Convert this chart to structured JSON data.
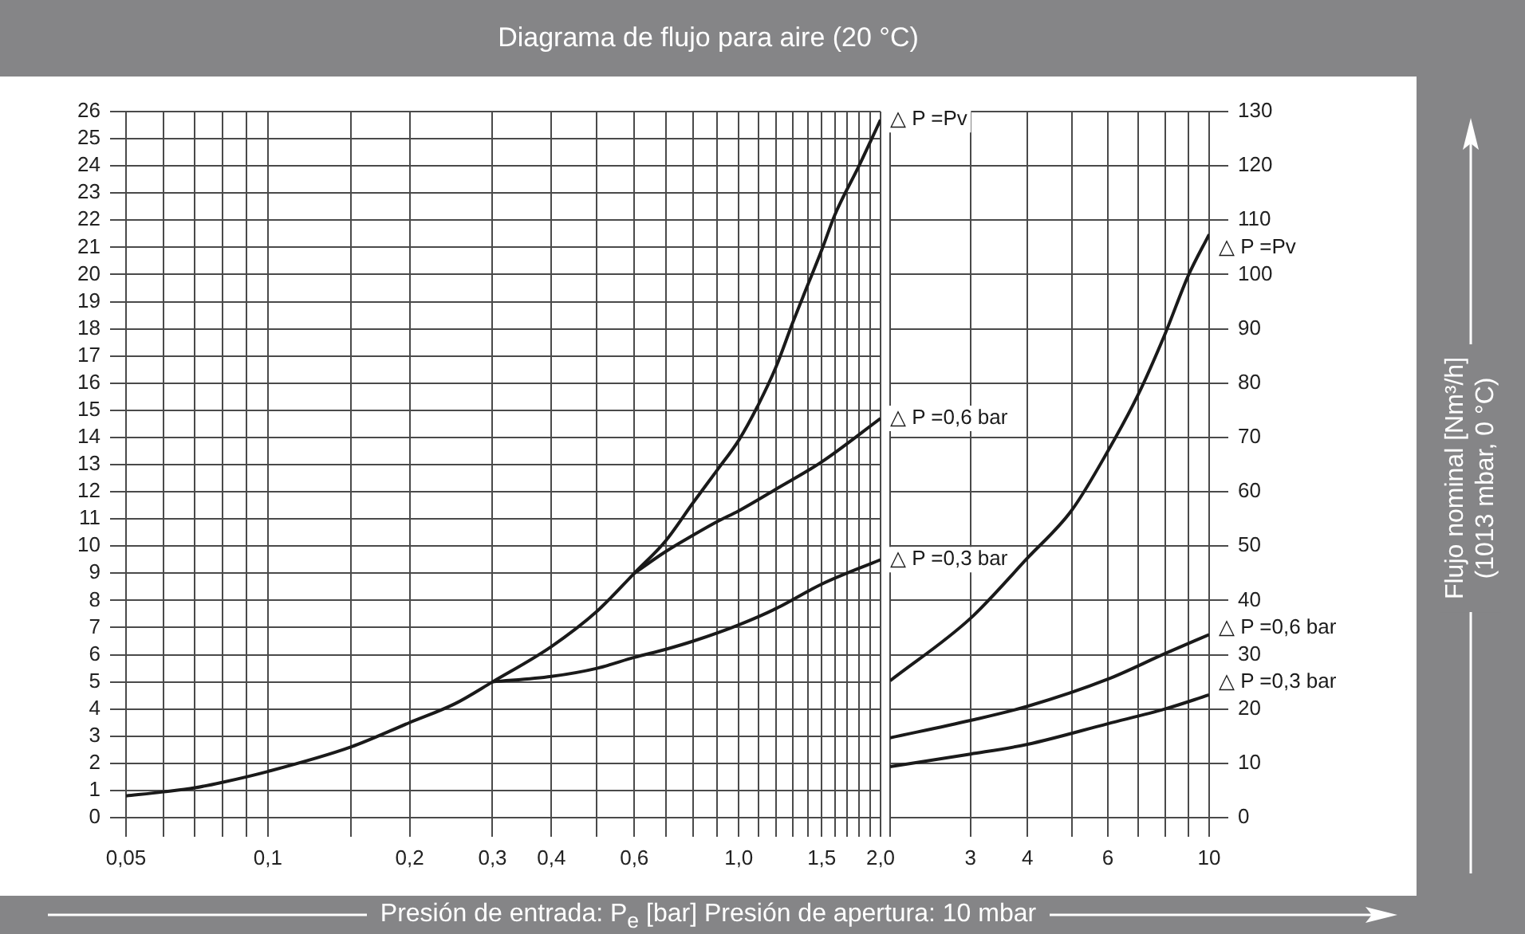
{
  "chart_data": [
    {
      "type": "line",
      "title": "Diagrama de flujo para aire (20 °C)",
      "xlabel": "Presión de entrada: P$_{e}$ [bar] Presión de apertura: 10 mbar",
      "log": "x",
      "xlim": [
        0.05,
        2
      ],
      "ylim": [
        0,
        26
      ],
      "xticks": [
        {
          "value": 0.05,
          "label": "0,05"
        },
        {
          "value": 0.06,
          "label": null
        },
        {
          "value": 0.07,
          "label": null
        },
        {
          "value": 0.08,
          "label": null
        },
        {
          "value": 0.09,
          "label": null
        },
        {
          "value": 0.1,
          "label": "0,1"
        },
        {
          "value": 0.15,
          "label": null
        },
        {
          "value": 0.2,
          "label": "0,2"
        },
        {
          "value": 0.3,
          "label": "0,3"
        },
        {
          "value": 0.4,
          "label": "0,4"
        },
        {
          "value": 0.5,
          "label": null
        },
        {
          "value": 0.6,
          "label": "0,6"
        },
        {
          "value": 0.7,
          "label": null
        },
        {
          "value": 0.8,
          "label": null
        },
        {
          "value": 0.9,
          "label": null
        },
        {
          "value": 1,
          "label": "1,0"
        },
        {
          "value": 1.1,
          "label": null
        },
        {
          "value": 1.2,
          "label": null
        },
        {
          "value": 1.3,
          "label": null
        },
        {
          "value": 1.4,
          "label": null
        },
        {
          "value": 1.5,
          "label": "1,5"
        },
        {
          "value": 1.6,
          "label": null
        },
        {
          "value": 1.7,
          "label": null
        },
        {
          "value": 1.8,
          "label": null
        },
        {
          "value": 1.9,
          "label": null
        },
        {
          "value": 2,
          "label": "2,0"
        }
      ],
      "yticks": [
        0,
        1,
        2,
        3,
        4,
        5,
        6,
        7,
        8,
        9,
        10,
        11,
        12,
        13,
        14,
        15,
        16,
        17,
        18,
        19,
        20,
        21,
        22,
        23,
        24,
        25,
        26
      ],
      "grid": true,
      "series": [
        {
          "name": "△ P =Pv",
          "color": "#1a1a1a",
          "x": [
            0.05,
            0.06,
            0.07,
            0.08,
            0.1,
            0.15,
            0.2,
            0.25,
            0.3,
            0.4,
            0.5,
            0.6,
            0.7,
            0.8,
            0.9,
            1.0,
            1.1,
            1.2,
            1.3,
            1.4,
            1.5,
            1.6,
            1.8,
            2.0
          ],
          "values": [
            0.8,
            0.95,
            1.1,
            1.3,
            1.7,
            2.6,
            3.5,
            4.2,
            5.0,
            6.3,
            7.6,
            9.0,
            10.2,
            11.6,
            12.8,
            13.9,
            15.2,
            16.6,
            18.2,
            19.6,
            20.9,
            22.2,
            24.0,
            25.7
          ]
        },
        {
          "name": "△ P =0,6 bar",
          "color": "#1a1a1a",
          "x": [
            0.6,
            0.7,
            0.8,
            0.9,
            1.0,
            1.2,
            1.5,
            2.0
          ],
          "values": [
            9.0,
            9.8,
            10.4,
            10.9,
            11.3,
            12.1,
            13.1,
            14.7
          ]
        },
        {
          "name": "△ P =0,3 bar",
          "color": "#1a1a1a",
          "x": [
            0.3,
            0.4,
            0.5,
            0.6,
            0.7,
            0.8,
            1.0,
            1.2,
            1.5,
            2.0
          ],
          "values": [
            5.0,
            5.2,
            5.5,
            5.9,
            6.2,
            6.5,
            7.1,
            7.7,
            8.6,
            9.5
          ]
        }
      ]
    },
    {
      "type": "line",
      "y2label": "Flujo nominal [Nm³/h]\n(1013 mbar, 0 °C)",
      "log": "x",
      "xlim": [
        2,
        10
      ],
      "y2lim": [
        0,
        130
      ],
      "xticks": [
        {
          "value": 2,
          "label": null
        },
        {
          "value": 3,
          "label": "3"
        },
        {
          "value": 4,
          "label": "4"
        },
        {
          "value": 5,
          "label": null
        },
        {
          "value": 6,
          "label": "6"
        },
        {
          "value": 7,
          "label": null
        },
        {
          "value": 8,
          "label": null
        },
        {
          "value": 9,
          "label": null
        },
        {
          "value": 10,
          "label": "10"
        }
      ],
      "y2ticks": [
        0,
        10,
        20,
        30,
        40,
        50,
        60,
        70,
        80,
        90,
        100,
        110,
        120,
        130
      ],
      "grid": true,
      "series": [
        {
          "name": "△ P =Pv",
          "color": "#1a1a1a",
          "axis": "y2",
          "x": [
            2,
            3,
            4,
            5,
            6,
            7,
            8,
            9,
            10
          ],
          "values": [
            25.2,
            36.7,
            47.8,
            56.6,
            67.5,
            78,
            89,
            99.8,
            107.4
          ]
        },
        {
          "name": "△ P =0,6 bar",
          "color": "#1a1a1a",
          "axis": "y2",
          "x": [
            2,
            3,
            4,
            6,
            8,
            10
          ],
          "values": [
            14.7,
            17.9,
            20.5,
            25.5,
            30.2,
            33.7
          ]
        },
        {
          "name": "△ P =0,3 bar",
          "color": "#1a1a1a",
          "axis": "y2",
          "x": [
            2,
            3,
            4,
            6,
            8,
            10
          ],
          "values": [
            9.4,
            11.7,
            13.5,
            17.3,
            20,
            22.6
          ]
        }
      ]
    }
  ]
}
